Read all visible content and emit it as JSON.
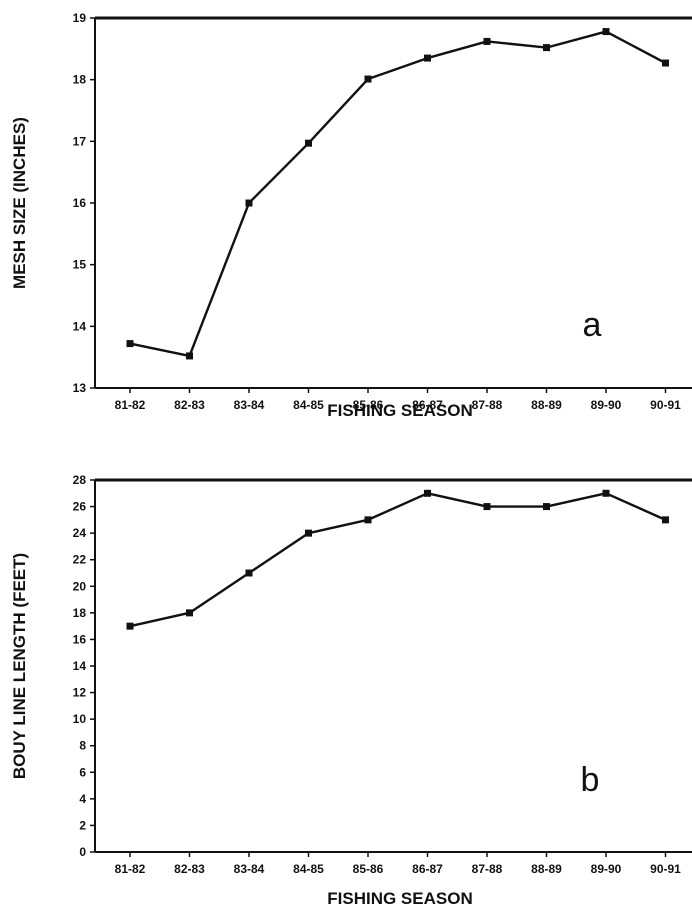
{
  "chart_data": [
    {
      "type": "line",
      "panel_label": "a",
      "title": "",
      "xlabel": "FISHING SEASON",
      "ylabel": "MESH SIZE (INCHES)",
      "categories": [
        "81-82",
        "82-83",
        "83-84",
        "84-85",
        "85-86",
        "86-87",
        "87-88",
        "88-89",
        "89-90",
        "90-91"
      ],
      "series": [
        {
          "values": [
            13.72,
            13.52,
            16.0,
            16.97,
            18.01,
            18.35,
            18.62,
            18.52,
            18.78,
            18.27
          ]
        }
      ],
      "ylim": [
        13,
        19
      ],
      "yticks": [
        13,
        14,
        15,
        16,
        17,
        18,
        19
      ],
      "grid": false,
      "line_color": "#111111",
      "marker": "square"
    },
    {
      "type": "line",
      "panel_label": "b",
      "title": "",
      "xlabel": "FISHING SEASON",
      "ylabel": "BOUY LINE LENGTH (FEET)",
      "categories": [
        "81-82",
        "82-83",
        "83-84",
        "84-85",
        "85-86",
        "86-87",
        "87-88",
        "88-89",
        "89-90",
        "90-91"
      ],
      "series": [
        {
          "values": [
            17,
            18,
            21,
            24,
            25,
            27,
            26,
            26,
            27,
            25
          ]
        }
      ],
      "ylim": [
        0,
        28
      ],
      "yticks": [
        0,
        2,
        4,
        6,
        8,
        10,
        12,
        14,
        16,
        18,
        20,
        22,
        24,
        26,
        28
      ],
      "grid": false,
      "line_color": "#111111",
      "marker": "square"
    }
  ]
}
